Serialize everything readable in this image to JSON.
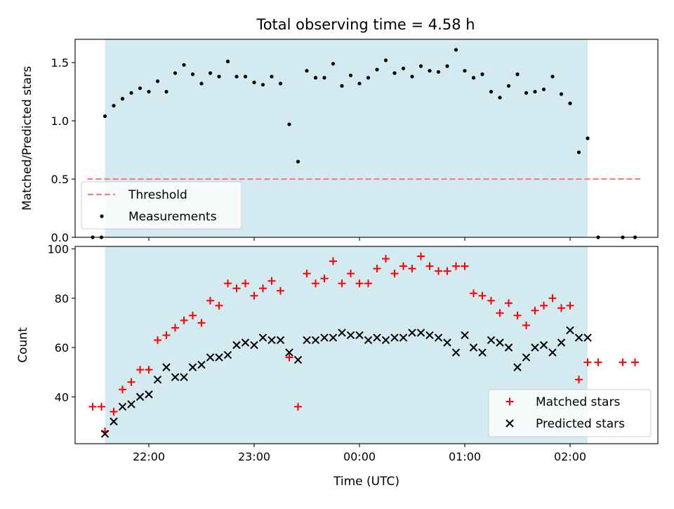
{
  "title": "Total observing time = 4.58 h",
  "colors": {
    "observing_band": "#d4eaf1",
    "threshold": "#f08080",
    "measurements": "#000000",
    "matched": "#ff0000",
    "predicted": "#000000"
  },
  "chart_data": [
    {
      "type": "scatter",
      "ylabel": "Matched/Predicted stars",
      "ylim": [
        0,
        1.7
      ],
      "y_ticks": [
        0.0,
        0.5,
        1.0,
        1.5
      ],
      "y_tick_labels": [
        "0.0",
        "0.5",
        "1.0",
        "1.5"
      ],
      "observing_window": [
        "21:35",
        "02:10"
      ],
      "threshold": {
        "name": "Threshold",
        "value": 0.5,
        "x_range": [
          "21:25",
          "02:40"
        ]
      },
      "legend": {
        "entries": [
          "Threshold",
          "Measurements"
        ],
        "position": "lower-left"
      },
      "series": [
        {
          "name": "Measurements",
          "marker": "dot",
          "x": [
            "21:28",
            "21:33",
            "21:35",
            "21:40",
            "21:45",
            "21:50",
            "21:55",
            "22:00",
            "22:05",
            "22:10",
            "22:15",
            "22:20",
            "22:25",
            "22:30",
            "22:35",
            "22:40",
            "22:45",
            "22:50",
            "22:55",
            "23:00",
            "23:05",
            "23:10",
            "23:15",
            "23:20",
            "23:25",
            "23:30",
            "23:35",
            "23:40",
            "23:45",
            "23:50",
            "23:55",
            "00:00",
            "00:05",
            "00:10",
            "00:15",
            "00:20",
            "00:25",
            "00:30",
            "00:35",
            "00:40",
            "00:45",
            "00:50",
            "00:55",
            "01:00",
            "01:05",
            "01:10",
            "01:15",
            "01:20",
            "01:25",
            "01:30",
            "01:35",
            "01:40",
            "01:45",
            "01:50",
            "01:55",
            "02:00",
            "02:05",
            "02:10",
            "02:16",
            "02:30",
            "02:37"
          ],
          "y": [
            0.0,
            0.0,
            1.04,
            1.13,
            1.19,
            1.24,
            1.28,
            1.25,
            1.34,
            1.25,
            1.41,
            1.48,
            1.4,
            1.32,
            1.41,
            1.38,
            1.51,
            1.38,
            1.38,
            1.33,
            1.31,
            1.38,
            1.32,
            0.97,
            0.65,
            1.43,
            1.37,
            1.37,
            1.49,
            1.3,
            1.39,
            1.32,
            1.37,
            1.44,
            1.52,
            1.41,
            1.45,
            1.38,
            1.47,
            1.43,
            1.42,
            1.47,
            1.61,
            1.43,
            1.37,
            1.4,
            1.25,
            1.2,
            1.3,
            1.4,
            1.24,
            1.25,
            1.27,
            1.38,
            1.23,
            1.15,
            0.73,
            0.85,
            0.0,
            0.0,
            0.0
          ]
        }
      ]
    },
    {
      "type": "scatter",
      "xlabel": "Time (UTC)",
      "ylabel": "Count",
      "ylim": [
        21,
        101
      ],
      "y_ticks": [
        40,
        60,
        80,
        100
      ],
      "y_tick_labels": [
        "40",
        "60",
        "80",
        "100"
      ],
      "x_ticks": [
        "22:00",
        "23:00",
        "00:00",
        "01:00",
        "02:00"
      ],
      "observing_window": [
        "21:35",
        "02:10"
      ],
      "legend": {
        "entries": [
          "Matched stars",
          "Predicted stars"
        ],
        "position": "lower-right"
      },
      "series": [
        {
          "name": "Matched stars",
          "marker": "plus",
          "color": "#ff0000",
          "x": [
            "21:28",
            "21:33",
            "21:35",
            "21:40",
            "21:45",
            "21:50",
            "21:55",
            "22:00",
            "22:05",
            "22:10",
            "22:15",
            "22:20",
            "22:25",
            "22:30",
            "22:35",
            "22:40",
            "22:45",
            "22:50",
            "22:55",
            "23:00",
            "23:05",
            "23:10",
            "23:15",
            "23:20",
            "23:25",
            "23:30",
            "23:35",
            "23:40",
            "23:45",
            "23:50",
            "23:55",
            "00:00",
            "00:05",
            "00:10",
            "00:15",
            "00:20",
            "00:25",
            "00:30",
            "00:35",
            "00:40",
            "00:45",
            "00:50",
            "00:55",
            "01:00",
            "01:05",
            "01:10",
            "01:15",
            "01:20",
            "01:25",
            "01:30",
            "01:35",
            "01:40",
            "01:45",
            "01:50",
            "01:55",
            "02:00",
            "02:05",
            "02:10",
            "02:16",
            "02:30",
            "02:37"
          ],
          "y": [
            36,
            36,
            26,
            34,
            43,
            46,
            51,
            51,
            63,
            65,
            68,
            71,
            73,
            70,
            79,
            77,
            86,
            84,
            86,
            81,
            84,
            87,
            83,
            56,
            36,
            90,
            86,
            88,
            95,
            86,
            90,
            86,
            86,
            92,
            96,
            90,
            93,
            92,
            97,
            93,
            91,
            91,
            93,
            93,
            82,
            81,
            79,
            74,
            78,
            73,
            69,
            75,
            77,
            80,
            76,
            77,
            47,
            54,
            54,
            54,
            54
          ]
        },
        {
          "name": "Predicted stars",
          "marker": "x",
          "color": "#000000",
          "x": [
            "21:35",
            "21:40",
            "21:45",
            "21:50",
            "21:55",
            "22:00",
            "22:05",
            "22:10",
            "22:15",
            "22:20",
            "22:25",
            "22:30",
            "22:35",
            "22:40",
            "22:45",
            "22:50",
            "22:55",
            "23:00",
            "23:05",
            "23:10",
            "23:15",
            "23:20",
            "23:25",
            "23:30",
            "23:35",
            "23:40",
            "23:45",
            "23:50",
            "23:55",
            "00:00",
            "00:05",
            "00:10",
            "00:15",
            "00:20",
            "00:25",
            "00:30",
            "00:35",
            "00:40",
            "00:45",
            "00:50",
            "00:55",
            "01:00",
            "01:05",
            "01:10",
            "01:15",
            "01:20",
            "01:25",
            "01:30",
            "01:35",
            "01:40",
            "01:45",
            "01:50",
            "01:55",
            "02:00",
            "02:05",
            "02:10"
          ],
          "y": [
            25,
            30,
            36,
            37,
            40,
            41,
            47,
            52,
            48,
            48,
            52,
            53,
            56,
            56,
            57,
            61,
            62,
            61,
            64,
            63,
            63,
            58,
            55,
            63,
            63,
            64,
            64,
            66,
            65,
            65,
            63,
            64,
            63,
            64,
            64,
            66,
            66,
            65,
            64,
            62,
            58,
            65,
            60,
            58,
            63,
            62,
            60,
            52,
            56,
            60,
            61,
            58,
            62,
            67,
            64,
            64
          ]
        }
      ]
    }
  ]
}
